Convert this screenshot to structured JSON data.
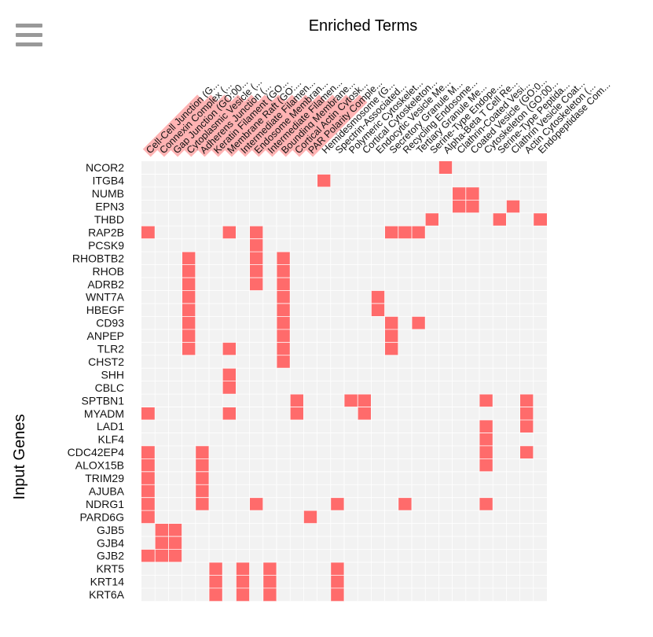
{
  "toolbar": {
    "menu_icon": "hamburger-menu-icon"
  },
  "colors": {
    "hit": "#ff6b6b",
    "background": "#f2f2f2",
    "grid": "#ffffff",
    "label_highlight": "#ffb3b3",
    "text": "#111111"
  },
  "chart_data": {
    "type": "heatmap",
    "title": "Enriched Terms",
    "xlabel": "",
    "ylabel": "Input Genes",
    "grid": true,
    "legend": "none",
    "x_terms": [
      {
        "label": "Cell-Cell Junction (G...",
        "highlighted": true
      },
      {
        "label": "Connexin Complex (...",
        "highlighted": true
      },
      {
        "label": "Gap Junction (GO:00...",
        "highlighted": true
      },
      {
        "label": "Cytoplasmic Vesicle (...",
        "highlighted": true
      },
      {
        "label": "Adherens Junction (...",
        "highlighted": true
      },
      {
        "label": "Keratin Filament (GO...",
        "highlighted": true
      },
      {
        "label": "Membrane Raft (GO:...",
        "highlighted": true
      },
      {
        "label": "Intermediate Filamen...",
        "highlighted": true
      },
      {
        "label": "Endosome Membran...",
        "highlighted": true
      },
      {
        "label": "Intermediate Filamen...",
        "highlighted": true
      },
      {
        "label": "Bounding Membrane...",
        "highlighted": true
      },
      {
        "label": "Cortical Actin Cytosk...",
        "highlighted": true
      },
      {
        "label": "PAR Polarity Comple...",
        "highlighted": true
      },
      {
        "label": "Hemidesmosome (G...",
        "highlighted": false
      },
      {
        "label": "Spectrin-Associated...",
        "highlighted": false
      },
      {
        "label": "Polymeric Cytoskelet...",
        "highlighted": false
      },
      {
        "label": "Cortical Cytoskeleton...",
        "highlighted": false
      },
      {
        "label": "Endocytic Vesicle Me...",
        "highlighted": false
      },
      {
        "label": "Secretory Granule M...",
        "highlighted": false
      },
      {
        "label": "Recycling Endosome...",
        "highlighted": false
      },
      {
        "label": "Tertiary Granule Me...",
        "highlighted": false
      },
      {
        "label": "Serine-Type Endope...",
        "highlighted": false
      },
      {
        "label": "Alpha-Beta T Cell Re...",
        "highlighted": false
      },
      {
        "label": "Clathrin-Coated Vesi...",
        "highlighted": false
      },
      {
        "label": "Coated Vesicle (GO:0...",
        "highlighted": false
      },
      {
        "label": "Cytoskeleton (GO:00...",
        "highlighted": false
      },
      {
        "label": "Serine-Type Peptida...",
        "highlighted": false
      },
      {
        "label": "Clathrin Vesicle Coat...",
        "highlighted": false
      },
      {
        "label": "Actin Cytoskeleton (...",
        "highlighted": false
      },
      {
        "label": "Endopeptidase Com...",
        "highlighted": false
      }
    ],
    "genes": [
      "NCOR2",
      "ITGB4",
      "NUMB",
      "EPN3",
      "THBD",
      "RAP2B",
      "PCSK9",
      "RHOBTB2",
      "RHOB",
      "ADRB2",
      "WNT7A",
      "HBEGF",
      "CD93",
      "ANPEP",
      "TLR2",
      "CHST2",
      "SHH",
      "CBLC",
      "SPTBN1",
      "MYADM",
      "LAD1",
      "KLF4",
      "CDC42EP4",
      "ALOX15B",
      "TRIM29",
      "AJUBA",
      "NDRG1",
      "PARD6G",
      "GJB5",
      "GJB4",
      "GJB2",
      "KRT5",
      "KRT14",
      "KRT6A"
    ],
    "hits": [
      [
        22
      ],
      [
        13
      ],
      [
        23,
        24
      ],
      [
        23,
        24,
        27
      ],
      [
        21,
        26,
        29
      ],
      [
        0,
        6,
        8,
        18,
        19,
        20
      ],
      [
        8
      ],
      [
        3,
        8,
        10
      ],
      [
        3,
        8,
        10
      ],
      [
        3,
        8,
        10
      ],
      [
        3,
        10,
        17
      ],
      [
        3,
        10,
        17
      ],
      [
        3,
        10,
        18,
        20
      ],
      [
        3,
        10,
        18
      ],
      [
        3,
        6,
        10,
        18
      ],
      [
        10
      ],
      [
        6
      ],
      [
        6
      ],
      [
        11,
        15,
        16,
        25,
        28
      ],
      [
        0,
        6,
        11,
        16,
        28
      ],
      [
        25,
        28
      ],
      [
        25
      ],
      [
        0,
        4,
        25,
        28
      ],
      [
        0,
        4,
        25
      ],
      [
        0,
        4
      ],
      [
        0,
        4
      ],
      [
        0,
        4,
        8,
        14,
        19,
        25
      ],
      [
        0,
        12
      ],
      [
        1,
        2
      ],
      [
        1,
        2
      ],
      [
        0,
        1,
        2
      ],
      [
        5,
        7,
        9,
        14
      ],
      [
        5,
        7,
        9,
        14
      ],
      [
        5,
        7,
        9,
        14
      ]
    ]
  }
}
